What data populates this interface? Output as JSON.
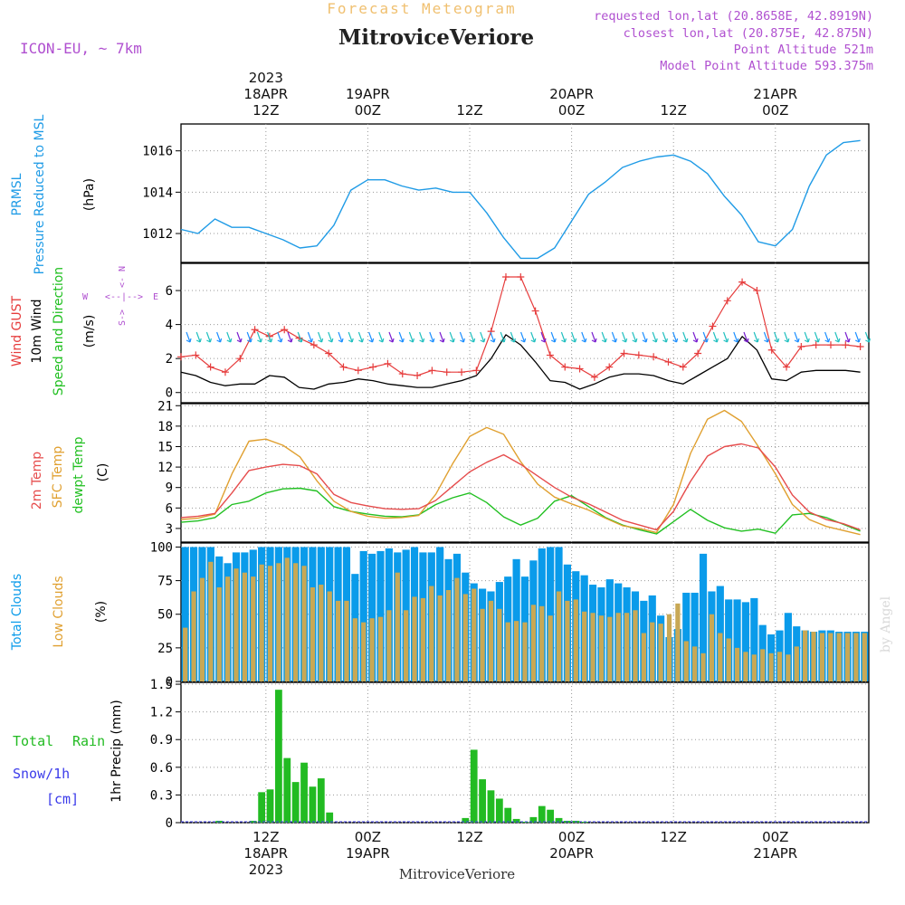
{
  "header": {
    "forecast_label": "Forecast Meteogram",
    "station_title": "MitroviceVeriore",
    "model": "ICON-EU, ~ 7km",
    "requested": "requested lon,lat (20.8658E, 42.8919N)",
    "closest": "closest lon,lat (20.875E, 42.875N)",
    "point_altitude": "Point Altitude 521m",
    "model_altitude": "Model Point Altitude 593.375m",
    "watermark": "by Angel",
    "bottom_title": "MitroviceVeriore"
  },
  "colors": {
    "pressure": "#1f9be6",
    "gust": "#e63c3c",
    "wind": "#000000",
    "green_label": "#1fbf1f",
    "temp": "#e64c4c",
    "sfc": "#e0a030",
    "dew": "#22c022",
    "cloud_total": "#0a9bea",
    "cloud_low": "#c8a855",
    "rain": "#22bb22",
    "snow": "#3b3bea",
    "purple": "#b050d0",
    "orange_title": "#f0c070"
  },
  "time_axis": {
    "top_labels": [
      {
        "lines": [
          "2023",
          "18APR",
          "12Z"
        ]
      },
      {
        "lines": [
          "19APR",
          "00Z"
        ]
      },
      {
        "lines": [
          "12Z"
        ]
      },
      {
        "lines": [
          "20APR",
          "00Z"
        ]
      },
      {
        "lines": [
          "12Z"
        ]
      },
      {
        "lines": [
          "21APR",
          "00Z"
        ]
      }
    ],
    "bottom_labels": [
      {
        "lines": [
          "12Z",
          "18APR",
          "2023"
        ]
      },
      {
        "lines": [
          "00Z",
          "19APR"
        ]
      },
      {
        "lines": [
          "12Z"
        ]
      },
      {
        "lines": [
          "00Z",
          "20APR"
        ]
      },
      {
        "lines": [
          "12Z"
        ]
      },
      {
        "lines": [
          "00Z",
          "21APR"
        ]
      }
    ]
  },
  "panel_labels": {
    "pressure": {
      "line1": "PRMSL",
      "line2": "Pressure Reduced to MSL",
      "unit": "(hPa)"
    },
    "wind": {
      "gust": "Wind GUST",
      "wind10": "10m Wind",
      "dir": "Speed and Direction",
      "unit": "(m/s)",
      "compass_n": "N",
      "compass_s": "S",
      "compass_w": "W",
      "compass_e": "E"
    },
    "temp": {
      "t2m": "2m Temp",
      "sfc": "SFC Temp",
      "dew": "dewpt Temp",
      "unit": "(C)"
    },
    "cloud": {
      "total": "Total Clouds",
      "low": "Low Clouds",
      "unit": "(%)"
    },
    "precip": {
      "total": "Total",
      "rain": "Rain",
      "snow": "Snow/1h",
      "cm": "[cm]",
      "unit": "1hr Precip (mm)"
    }
  },
  "chart_data": [
    {
      "type": "line",
      "name": "pressure",
      "ylim": [
        1010.6,
        1017.3
      ],
      "yticks": [
        "1012",
        "1014",
        "1016"
      ],
      "x": [
        0,
        2,
        4,
        6,
        8,
        10,
        12,
        14,
        16,
        18,
        20,
        22,
        24,
        26,
        28,
        30,
        32,
        34,
        36,
        38,
        40,
        42,
        44,
        46,
        48,
        50,
        52,
        54,
        56,
        58,
        60,
        62,
        64,
        66,
        68,
        70,
        72,
        74,
        76,
        78,
        80
      ],
      "values": [
        1012.2,
        1012.0,
        1012.7,
        1012.3,
        1012.3,
        1012.0,
        1011.7,
        1011.3,
        1011.4,
        1012.4,
        1014.1,
        1014.6,
        1014.6,
        1014.3,
        1014.1,
        1014.2,
        1014.0,
        1014.0,
        1013.0,
        1011.8,
        1010.8,
        1010.8,
        1011.3,
        1012.6,
        1013.9,
        1014.5,
        1015.2,
        1015.5,
        1015.7,
        1015.8,
        1015.5,
        1014.9,
        1013.8,
        1012.9,
        1011.6,
        1011.4,
        1012.2,
        1014.3,
        1015.8,
        1016.4,
        1016.5
      ]
    },
    {
      "type": "line",
      "name": "wind",
      "ylim": [
        -0.6,
        7.6
      ],
      "yticks": [
        "0",
        "2",
        "4",
        "6"
      ],
      "gust": [
        2.1,
        2.2,
        1.5,
        1.2,
        2.0,
        3.7,
        3.3,
        3.7,
        3.2,
        2.8,
        2.3,
        1.5,
        1.3,
        1.5,
        1.7,
        1.1,
        1.0,
        1.3,
        1.2,
        1.2,
        1.3,
        3.6,
        6.8,
        6.8,
        4.8,
        2.2,
        1.5,
        1.4,
        0.9,
        1.5,
        2.3,
        2.2,
        2.1,
        1.8,
        1.5,
        2.3,
        3.9,
        5.4,
        6.5,
        6.0,
        2.5,
        1.5,
        2.7,
        2.8,
        2.8,
        2.8,
        2.7
      ],
      "wind10": [
        1.2,
        1.0,
        0.6,
        0.4,
        0.5,
        0.5,
        1.0,
        0.9,
        0.3,
        0.2,
        0.5,
        0.6,
        0.8,
        0.7,
        0.5,
        0.4,
        0.3,
        0.3,
        0.5,
        0.7,
        1.0,
        2.0,
        3.4,
        2.8,
        1.8,
        0.7,
        0.6,
        0.2,
        0.5,
        0.9,
        1.1,
        1.1,
        1.0,
        0.7,
        0.5,
        1.0,
        1.5,
        2.0,
        3.3,
        2.5,
        0.8,
        0.7,
        1.2,
        1.3,
        1.3,
        1.3,
        1.2
      ]
    },
    {
      "type": "line",
      "name": "temperature",
      "ylim": [
        1.0,
        21.3
      ],
      "yticks": [
        "3",
        "6",
        "9",
        "12",
        "15",
        "18",
        "21"
      ],
      "x": [
        0,
        2,
        4,
        6,
        8,
        10,
        12,
        14,
        16,
        18,
        20,
        22,
        24,
        26,
        28,
        30,
        32,
        34,
        36,
        38,
        40,
        42,
        44,
        46,
        48,
        50,
        52,
        54,
        56,
        58,
        60,
        62,
        64,
        66,
        68,
        70,
        72,
        74,
        76,
        78,
        80
      ],
      "t2m": [
        4.6,
        4.8,
        5.2,
        8.2,
        11.5,
        12.0,
        12.4,
        12.2,
        11.0,
        8.0,
        6.8,
        6.3,
        5.9,
        5.8,
        5.9,
        7.1,
        9.2,
        11.3,
        12.7,
        13.8,
        12.4,
        10.7,
        9.0,
        7.6,
        6.6,
        5.4,
        4.2,
        3.5,
        2.8,
        5.5,
        9.9,
        13.6,
        15.0,
        15.4,
        14.8,
        12.0,
        7.9,
        5.4,
        4.3,
        3.7,
        2.8
      ],
      "sfc": [
        4.3,
        4.5,
        5.1,
        11.0,
        15.8,
        16.1,
        15.2,
        13.5,
        10.0,
        7.0,
        5.5,
        4.8,
        4.5,
        4.6,
        4.9,
        8.0,
        12.5,
        16.5,
        17.8,
        16.8,
        12.8,
        9.5,
        7.6,
        6.6,
        5.7,
        4.5,
        3.4,
        3.0,
        2.4,
        6.5,
        14.0,
        19.0,
        20.3,
        18.7,
        15.0,
        11.0,
        6.5,
        4.3,
        3.3,
        2.7,
        2.1
      ],
      "dew": [
        3.9,
        4.1,
        4.6,
        6.5,
        7.0,
        8.2,
        8.8,
        8.9,
        8.5,
        6.2,
        5.5,
        5.1,
        4.8,
        4.7,
        5.0,
        6.5,
        7.5,
        8.2,
        6.8,
        4.7,
        3.5,
        4.5,
        7.0,
        7.8,
        6.2,
        4.6,
        3.5,
        2.8,
        2.2,
        4.0,
        5.8,
        4.2,
        3.1,
        2.6,
        2.9,
        2.3,
        5.0,
        5.2,
        4.6,
        3.6,
        2.6
      ]
    },
    {
      "type": "bar",
      "name": "clouds",
      "ylim": [
        0,
        103
      ],
      "yticks": [
        "0",
        "25",
        "50",
        "75",
        "100"
      ],
      "total": [
        100,
        100,
        100,
        100,
        93,
        88,
        96,
        96,
        98,
        100,
        100,
        100,
        100,
        100,
        100,
        100,
        100,
        100,
        100,
        100,
        80,
        97,
        95,
        97,
        99,
        96,
        98,
        100,
        96,
        96,
        100,
        91,
        95,
        81,
        73,
        69,
        67,
        74,
        78,
        91,
        78,
        90,
        99,
        100,
        100,
        87,
        82,
        79,
        72,
        70,
        76,
        73,
        70,
        67,
        60,
        64,
        49,
        33,
        39,
        66,
        66,
        95,
        67,
        71,
        61,
        61,
        59,
        62,
        42,
        35,
        38,
        51,
        41,
        38,
        37,
        38,
        38,
        37,
        37,
        37,
        37
      ],
      "low": [
        40,
        67,
        77,
        89,
        70,
        78,
        84,
        81,
        78,
        87,
        86,
        88,
        92,
        88,
        86,
        70,
        72,
        67,
        60,
        60,
        47,
        44,
        47,
        48,
        53,
        81,
        53,
        63,
        62,
        71,
        64,
        68,
        77,
        65,
        69,
        54,
        60,
        54,
        44,
        45,
        44,
        57,
        56,
        49,
        67,
        60,
        61,
        52,
        51,
        49,
        48,
        51,
        51,
        53,
        36,
        44,
        43,
        50,
        58,
        30,
        26,
        21,
        50,
        36,
        32,
        25,
        22,
        20,
        24,
        21,
        22,
        20,
        26,
        38,
        37,
        36,
        36,
        36,
        36,
        36,
        36
      ]
    },
    {
      "type": "bar",
      "name": "precipitation",
      "ylim": [
        0,
        1.52
      ],
      "yticks": [
        "0",
        "0.3",
        "0.6",
        "0.9",
        "1.2",
        "1.5"
      ],
      "rain": [
        0,
        0,
        0,
        0,
        0.02,
        0,
        0,
        0,
        0.02,
        0.33,
        0.36,
        1.44,
        0.7,
        0.44,
        0.65,
        0.39,
        0.48,
        0.11,
        0,
        0,
        0,
        0,
        0,
        0,
        0,
        0,
        0,
        0,
        0,
        0,
        0,
        0,
        0,
        0.05,
        0.79,
        0.47,
        0.35,
        0.26,
        0.16,
        0.04,
        0.01,
        0.06,
        0.18,
        0.14,
        0.05,
        0.02,
        0.02,
        0.01,
        0,
        0,
        0,
        0,
        0,
        0,
        0,
        0,
        0,
        0,
        0,
        0,
        0,
        0,
        0,
        0,
        0,
        0,
        0,
        0,
        0,
        0,
        0,
        0,
        0,
        0,
        0,
        0,
        0,
        0,
        0,
        0,
        0
      ]
    }
  ]
}
